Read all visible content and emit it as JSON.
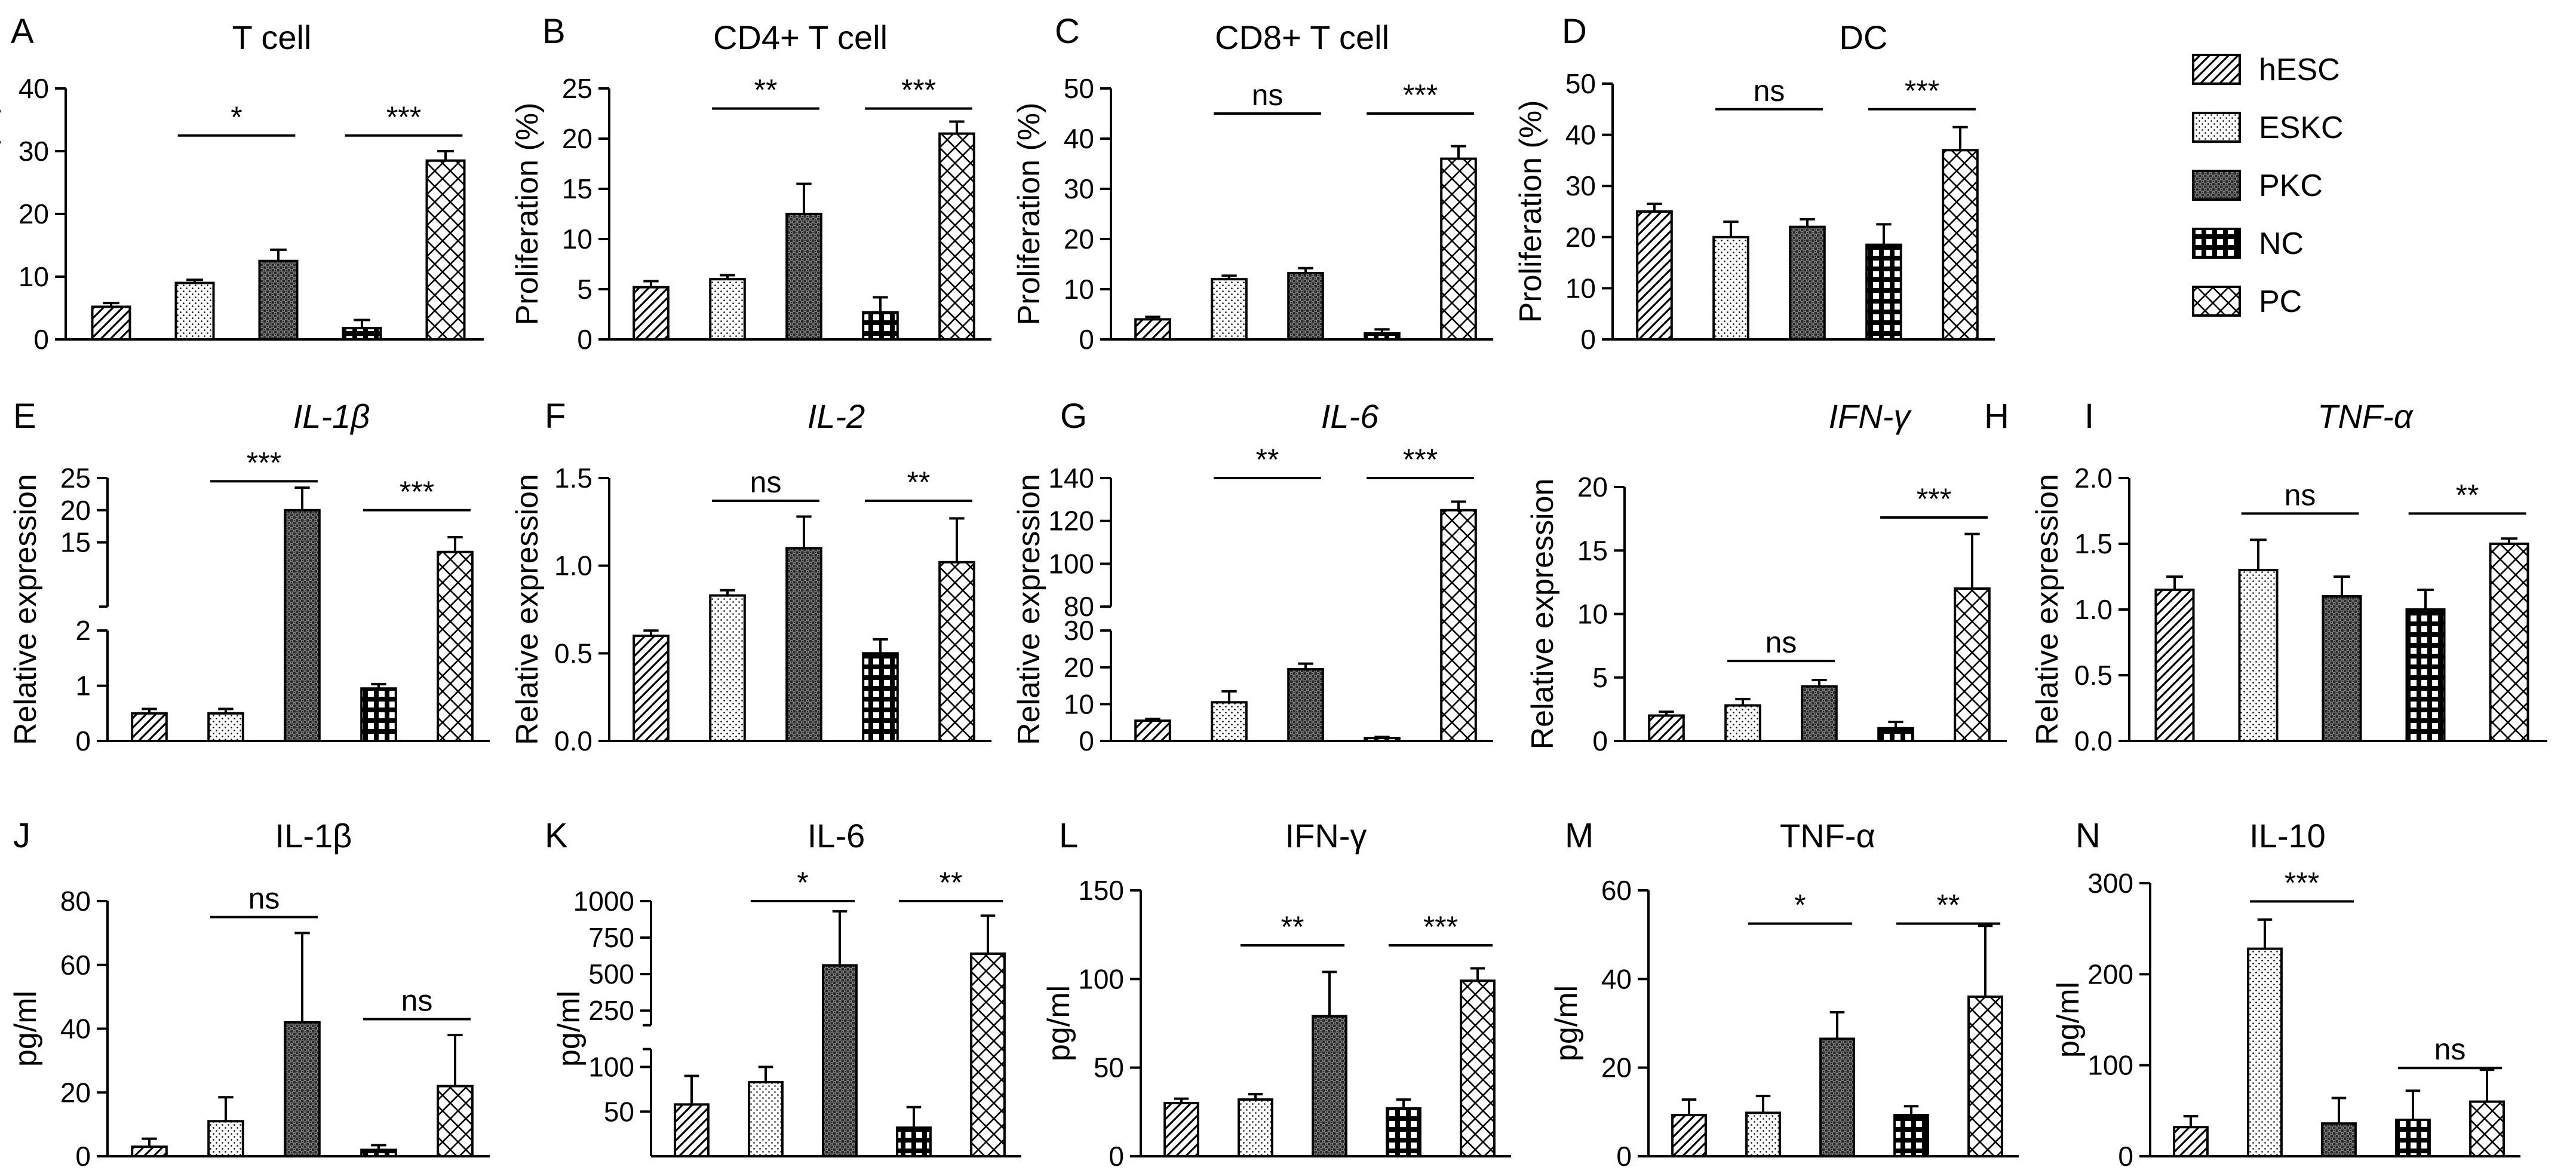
{
  "figure": {
    "legend": [
      {
        "label": "hESC",
        "pattern": "diag"
      },
      {
        "label": "ESKC",
        "pattern": "dots"
      },
      {
        "label": "PKC",
        "pattern": "darkcheck"
      },
      {
        "label": "NC",
        "pattern": "grid"
      },
      {
        "label": "PC",
        "pattern": "cross"
      }
    ],
    "colors": {
      "ink": "#000000",
      "background": "#ffffff",
      "grid_fill": "#000000"
    }
  },
  "chart_data": [
    {
      "panel": "A",
      "title": "T cell",
      "title_italic": false,
      "type": "bar",
      "ylabel": "Proliferation (%)",
      "categories": [
        "hESC",
        "ESKC",
        "PKC",
        "NC",
        "PC"
      ],
      "values": [
        5.2,
        9.0,
        12.5,
        1.8,
        28.5
      ],
      "errors": [
        0.6,
        0.5,
        1.8,
        1.3,
        1.5
      ],
      "ylim": [
        0,
        40
      ],
      "ticks": [
        0,
        10,
        20,
        30,
        40
      ],
      "significance": [
        {
          "from": 1,
          "to": 2,
          "label": "*",
          "y": 32.5
        },
        {
          "from": 3,
          "to": 4,
          "label": "***",
          "y": 32.5
        }
      ]
    },
    {
      "panel": "B",
      "title": "CD4+ T cell",
      "title_italic": false,
      "type": "bar",
      "ylabel": "Proliferation (%)",
      "categories": [
        "hESC",
        "ESKC",
        "PKC",
        "NC",
        "PC"
      ],
      "values": [
        5.2,
        6.0,
        12.5,
        2.7,
        20.5
      ],
      "errors": [
        0.6,
        0.4,
        3.0,
        1.5,
        1.2
      ],
      "ylim": [
        0,
        25
      ],
      "ticks": [
        0,
        5,
        10,
        15,
        20,
        25
      ],
      "significance": [
        {
          "from": 1,
          "to": 2,
          "label": "**",
          "y": 23
        },
        {
          "from": 3,
          "to": 4,
          "label": "***",
          "y": 23
        }
      ]
    },
    {
      "panel": "C",
      "title": "CD8+ T cell",
      "title_italic": false,
      "type": "bar",
      "ylabel": "Proliferation (%)",
      "categories": [
        "hESC",
        "ESKC",
        "PKC",
        "NC",
        "PC"
      ],
      "values": [
        4.0,
        12.0,
        13.2,
        1.2,
        36.0
      ],
      "errors": [
        0.5,
        0.7,
        1.0,
        0.8,
        2.5
      ],
      "ylim": [
        0,
        50
      ],
      "ticks": [
        0,
        10,
        20,
        30,
        40,
        50
      ],
      "significance": [
        {
          "from": 1,
          "to": 2,
          "label": "ns",
          "y": 45
        },
        {
          "from": 3,
          "to": 4,
          "label": "***",
          "y": 45
        }
      ]
    },
    {
      "panel": "D",
      "title": "DC",
      "title_italic": false,
      "type": "bar",
      "ylabel": "Proliferation (%)",
      "categories": [
        "hESC",
        "ESKC",
        "PKC",
        "NC",
        "PC"
      ],
      "values": [
        25.0,
        20.0,
        22.0,
        18.5,
        37.0
      ],
      "errors": [
        1.5,
        3.0,
        1.5,
        4.0,
        4.5
      ],
      "ylim": [
        0,
        50
      ],
      "ticks": [
        0,
        10,
        20,
        30,
        40,
        50
      ],
      "significance": [
        {
          "from": 1,
          "to": 2,
          "label": "ns",
          "y": 45
        },
        {
          "from": 3,
          "to": 4,
          "label": "***",
          "y": 45
        }
      ]
    },
    {
      "panel": "E",
      "title": "IL-1β",
      "title_italic": true,
      "type": "bar",
      "ylabel": "Relative expression",
      "categories": [
        "hESC",
        "ESKC",
        "PKC",
        "NC",
        "PC"
      ],
      "values": [
        0.5,
        0.5,
        20.0,
        0.95,
        13.5
      ],
      "errors": [
        0.08,
        0.08,
        3.5,
        0.08,
        2.3
      ],
      "ylim": [
        0,
        25
      ],
      "ticks": [
        0,
        1,
        2,
        15,
        20,
        25
      ],
      "axis_break": {
        "lower": [
          0,
          2
        ],
        "upper": [
          5,
          25
        ]
      },
      "significance": [
        {
          "from": 1,
          "to": 2,
          "label": "***",
          "y": 24.5
        },
        {
          "from": 3,
          "to": 4,
          "label": "***",
          "y": 20.0
        }
      ]
    },
    {
      "panel": "F",
      "title": "IL-2",
      "title_italic": true,
      "type": "bar",
      "ylabel": "Relative expression",
      "categories": [
        "hESC",
        "ESKC",
        "PKC",
        "NC",
        "PC"
      ],
      "values": [
        0.6,
        0.83,
        1.1,
        0.5,
        1.02
      ],
      "errors": [
        0.03,
        0.03,
        0.18,
        0.08,
        0.25
      ],
      "ylim": [
        0,
        1.5
      ],
      "ticks": [
        0.0,
        0.5,
        1.0,
        1.5
      ],
      "significance": [
        {
          "from": 1,
          "to": 2,
          "label": "ns",
          "y": 1.37
        },
        {
          "from": 3,
          "to": 4,
          "label": "**",
          "y": 1.37
        }
      ]
    },
    {
      "panel": "G",
      "title": "IL-6",
      "title_italic": true,
      "type": "bar",
      "ylabel": "Relative expression",
      "categories": [
        "hESC",
        "ESKC",
        "PKC",
        "NC",
        "PC"
      ],
      "values": [
        5.5,
        10.5,
        19.5,
        0.8,
        125
      ],
      "errors": [
        0.5,
        3.0,
        1.5,
        0.3,
        4.0
      ],
      "ylim": [
        0,
        140
      ],
      "ticks": [
        0,
        10,
        20,
        30,
        80,
        100,
        120,
        140
      ],
      "axis_break": {
        "lower": [
          0,
          30
        ],
        "upper": [
          80,
          140
        ]
      },
      "significance": [
        {
          "from": 1,
          "to": 2,
          "label": "**",
          "y": 147
        },
        {
          "from": 3,
          "to": 4,
          "label": "***",
          "y": 147
        }
      ]
    },
    {
      "panel": "H",
      "title": "IFN-γ",
      "title_italic": true,
      "type": "bar",
      "ylabel": "Relative expression",
      "categories": [
        "hESC",
        "ESKC",
        "PKC",
        "NC",
        "PC"
      ],
      "values": [
        2.0,
        2.8,
        4.3,
        1.0,
        12.0
      ],
      "errors": [
        0.3,
        0.5,
        0.5,
        0.5,
        4.3
      ],
      "ylim": [
        0,
        20
      ],
      "ticks": [
        0,
        5,
        10,
        15,
        20
      ],
      "significance": [
        {
          "from": 1,
          "to": 2,
          "label": "ns",
          "y": 6.3
        },
        {
          "from": 3,
          "to": 4,
          "label": "***",
          "y": 17.6
        }
      ]
    },
    {
      "panel": "I",
      "title": "TNF-α",
      "title_italic": true,
      "type": "bar",
      "ylabel": "Relative expression",
      "categories": [
        "hESC",
        "ESKC",
        "PKC",
        "NC",
        "PC"
      ],
      "values": [
        1.15,
        1.3,
        1.1,
        1.0,
        1.5
      ],
      "errors": [
        0.1,
        0.23,
        0.15,
        0.15,
        0.04
      ],
      "ylim": [
        0,
        2.0
      ],
      "ticks": [
        0.0,
        0.5,
        1.0,
        1.5,
        2.0
      ],
      "significance": [
        {
          "from": 1,
          "to": 2,
          "label": "ns",
          "y": 1.73
        },
        {
          "from": 3,
          "to": 4,
          "label": "**",
          "y": 1.73
        }
      ]
    },
    {
      "panel": "J",
      "title": "IL-1β",
      "title_italic": false,
      "type": "bar",
      "ylabel": "pg/ml",
      "categories": [
        "hESC",
        "ESKC",
        "PKC",
        "NC",
        "PC"
      ],
      "values": [
        3.0,
        11.0,
        42.0,
        2.0,
        22.0
      ],
      "errors": [
        2.5,
        7.5,
        28.0,
        1.5,
        16.0
      ],
      "ylim": [
        0,
        80
      ],
      "ticks": [
        0,
        20,
        40,
        60,
        80
      ],
      "significance": [
        {
          "from": 1,
          "to": 2,
          "label": "ns",
          "y": 75
        },
        {
          "from": 3,
          "to": 4,
          "label": "ns",
          "y": 43
        }
      ]
    },
    {
      "panel": "K",
      "title": "IL-6",
      "title_italic": false,
      "type": "bar",
      "ylabel": "pg/ml",
      "categories": [
        "hESC",
        "ESKC",
        "PKC",
        "NC",
        "PC"
      ],
      "values": [
        58,
        83,
        560,
        32,
        640
      ],
      "errors": [
        32,
        17,
        370,
        23,
        260
      ],
      "ylim": [
        0,
        1000
      ],
      "ticks": [
        50,
        100,
        250,
        500,
        750,
        1000
      ],
      "axis_break": {
        "lower": [
          0,
          120
        ],
        "upper": [
          150,
          1000
        ]
      },
      "significance": [
        {
          "from": 1,
          "to": 2,
          "label": "*",
          "y": 1000
        },
        {
          "from": 3,
          "to": 4,
          "label": "**",
          "y": 1000
        }
      ]
    },
    {
      "panel": "L",
      "title": "IFN-γ",
      "title_italic": false,
      "type": "bar",
      "ylabel": "pg/ml",
      "categories": [
        "hESC",
        "ESKC",
        "PKC",
        "NC",
        "PC"
      ],
      "values": [
        30,
        32,
        79,
        27,
        99
      ],
      "errors": [
        2.5,
        3.0,
        25.0,
        5.0,
        7.0
      ],
      "ylim": [
        0,
        150
      ],
      "ticks": [
        0,
        50,
        100,
        150
      ],
      "significance": [
        {
          "from": 1,
          "to": 2,
          "label": "**",
          "y": 119
        },
        {
          "from": 3,
          "to": 4,
          "label": "***",
          "y": 119
        }
      ]
    },
    {
      "panel": "M",
      "title": "TNF-α",
      "title_italic": false,
      "type": "bar",
      "ylabel": "pg/ml",
      "categories": [
        "hESC",
        "ESKC",
        "PKC",
        "NC",
        "PC"
      ],
      "values": [
        9.3,
        9.8,
        26.5,
        9.3,
        36.0
      ],
      "errors": [
        3.5,
        3.8,
        6.0,
        2.0,
        16.0
      ],
      "ylim": [
        0,
        60
      ],
      "ticks": [
        0,
        20,
        40,
        60
      ],
      "significance": [
        {
          "from": 1,
          "to": 2,
          "label": "*",
          "y": 52.5
        },
        {
          "from": 3,
          "to": 4,
          "label": "**",
          "y": 52.5
        }
      ]
    },
    {
      "panel": "N",
      "title": "IL-10",
      "title_italic": false,
      "type": "bar",
      "ylabel": "pg/ml",
      "categories": [
        "hESC",
        "ESKC",
        "PKC",
        "NC",
        "PC"
      ],
      "values": [
        32,
        228,
        36,
        40,
        60
      ],
      "errors": [
        12,
        32,
        28,
        32,
        35
      ],
      "ylim": [
        0,
        300
      ],
      "ticks": [
        0,
        100,
        200,
        300
      ],
      "significance": [
        {
          "from": 1,
          "to": 2,
          "label": "***",
          "y": 280
        },
        {
          "from": 3,
          "to": 4,
          "label": "ns",
          "y": 97
        }
      ]
    }
  ]
}
